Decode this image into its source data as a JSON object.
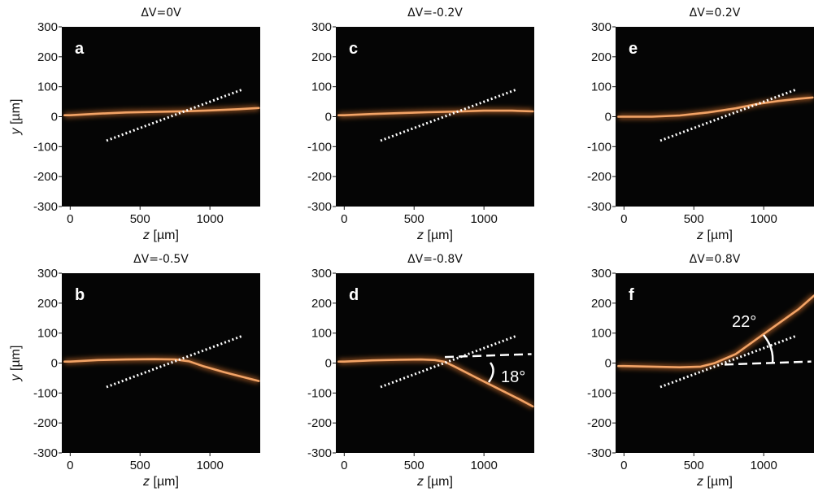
{
  "chart_data": [
    {
      "type": "line",
      "panel_label": "a",
      "title": "ΔV=0V",
      "xlabel": "z [µm]",
      "ylabel": "y [µm]",
      "xlim": [
        -60,
        1360
      ],
      "ylim": [
        -300,
        300
      ],
      "xticks": [
        0,
        500,
        1000
      ],
      "yticks": [
        300,
        200,
        100,
        0,
        -100,
        -200,
        -300
      ],
      "beam": {
        "x": [
          -40,
          0,
          200,
          400,
          600,
          800,
          1000,
          1200,
          1350
        ],
        "y": [
          5,
          5,
          10,
          14,
          16,
          18,
          21,
          25,
          29
        ]
      },
      "reference_line": {
        "x": [
          260,
          1240
        ],
        "y": [
          -80,
          92
        ]
      },
      "annotations": []
    },
    {
      "type": "line",
      "panel_label": "b",
      "title": "ΔV=-0.5V",
      "xlabel": "z [µm]",
      "ylabel": "y [µm]",
      "xlim": [
        -60,
        1360
      ],
      "ylim": [
        -300,
        300
      ],
      "xticks": [
        0,
        500,
        1000
      ],
      "yticks": [
        300,
        200,
        100,
        0,
        -100,
        -200,
        -300
      ],
      "beam": {
        "x": [
          -40,
          0,
          200,
          400,
          600,
          750,
          850,
          950,
          1100,
          1250,
          1350
        ],
        "y": [
          5,
          5,
          10,
          12,
          13,
          12,
          6,
          -10,
          -30,
          -48,
          -60
        ]
      },
      "reference_line": {
        "x": [
          260,
          1240
        ],
        "y": [
          -80,
          92
        ]
      },
      "annotations": []
    },
    {
      "type": "line",
      "panel_label": "c",
      "title": "ΔV=-0.2V",
      "xlabel": "z [µm]",
      "ylabel": "y [µm]",
      "xlim": [
        -60,
        1360
      ],
      "ylim": [
        -300,
        300
      ],
      "xticks": [
        0,
        500,
        1000
      ],
      "yticks": [
        300,
        200,
        100,
        0,
        -100,
        -200,
        -300
      ],
      "beam": {
        "x": [
          -40,
          0,
          200,
          400,
          600,
          800,
          1000,
          1200,
          1350
        ],
        "y": [
          5,
          5,
          9,
          12,
          15,
          17,
          20,
          20,
          18
        ]
      },
      "reference_line": {
        "x": [
          260,
          1240
        ],
        "y": [
          -80,
          92
        ]
      },
      "annotations": []
    },
    {
      "type": "line",
      "panel_label": "d",
      "title": "ΔV=-0.8V",
      "xlabel": "z [µm]",
      "ylabel": "y [µm]",
      "xlim": [
        -60,
        1360
      ],
      "ylim": [
        -300,
        300
      ],
      "xticks": [
        0,
        500,
        1000
      ],
      "yticks": [
        300,
        200,
        100,
        0,
        -100,
        -200,
        -300
      ],
      "beam": {
        "x": [
          -40,
          0,
          200,
          400,
          550,
          650,
          720,
          800,
          950,
          1100,
          1250,
          1350
        ],
        "y": [
          5,
          5,
          9,
          11,
          12,
          10,
          4,
          -14,
          -50,
          -85,
          -120,
          -145
        ]
      },
      "reference_line": {
        "x": [
          260,
          1240
        ],
        "y": [
          -80,
          92
        ]
      },
      "horizontal_line": {
        "x": [
          720,
          1340
        ],
        "y": [
          20,
          30
        ]
      },
      "annotations": [
        "18°"
      ]
    },
    {
      "type": "line",
      "panel_label": "e",
      "title": "ΔV=0.2V",
      "xlabel": "z [µm]",
      "ylabel": "y [µm]",
      "xlim": [
        -60,
        1360
      ],
      "ylim": [
        -300,
        300
      ],
      "xticks": [
        0,
        500,
        1000
      ],
      "yticks": [
        300,
        200,
        100,
        0,
        -100,
        -200,
        -300
      ],
      "beam": {
        "x": [
          -40,
          0,
          200,
          400,
          600,
          800,
          950,
          1100,
          1250,
          1350
        ],
        "y": [
          0,
          0,
          0,
          4,
          14,
          28,
          42,
          52,
          60,
          64
        ]
      },
      "reference_line": {
        "x": [
          260,
          1240
        ],
        "y": [
          -80,
          92
        ]
      },
      "annotations": []
    },
    {
      "type": "line",
      "panel_label": "f",
      "title": "ΔV=0.8V",
      "xlabel": "z [µm]",
      "ylabel": "y [µm]",
      "xlim": [
        -60,
        1360
      ],
      "ylim": [
        -300,
        300
      ],
      "xticks": [
        0,
        500,
        1000
      ],
      "yticks": [
        300,
        200,
        100,
        0,
        -100,
        -200,
        -300
      ],
      "beam": {
        "x": [
          -40,
          0,
          200,
          400,
          550,
          650,
          800,
          950,
          1100,
          1250,
          1360
        ],
        "y": [
          -10,
          -10,
          -12,
          -14,
          -12,
          0,
          30,
          80,
          130,
          180,
          225
        ]
      },
      "reference_line": {
        "x": [
          260,
          1240
        ],
        "y": [
          -80,
          92
        ]
      },
      "horizontal_line": {
        "x": [
          720,
          1340
        ],
        "y": [
          -5,
          5
        ]
      },
      "annotations": [
        "22°"
      ]
    }
  ],
  "colors": {
    "plot_background": "#050505",
    "beam": "#f2a366",
    "beam_glow": "#e07a2e",
    "overlay_lines": "#ffffff",
    "text": "#111111"
  }
}
